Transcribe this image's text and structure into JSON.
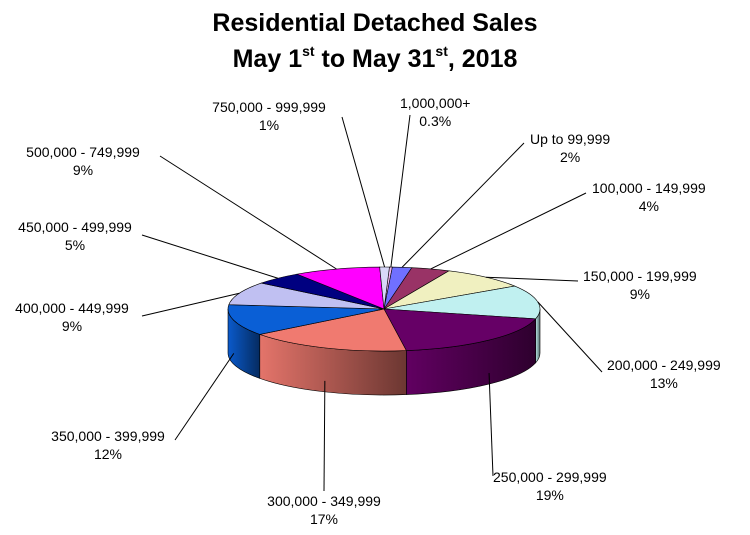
{
  "chart_data": {
    "type": "pie",
    "title": {
      "line1": "Residential Detached Sales",
      "line2_a": "May 1",
      "line2_sup1": "st",
      "line2_b": " to May 31",
      "line2_sup2": "st",
      "line2_c": ", 2018"
    },
    "slices": [
      {
        "label": "1,000,000+",
        "value_text": "0.3%",
        "value": 0.3,
        "color": "#f2b8f2"
      },
      {
        "label": "Up to 99,999",
        "value_text": "2%",
        "value": 2,
        "color": "#7070ff"
      },
      {
        "label": "100,000 - 149,999",
        "value_text": "4%",
        "value": 4,
        "color": "#993366"
      },
      {
        "label": "150,000 - 199,999",
        "value_text": "9%",
        "value": 9,
        "color": "#f0f0c0"
      },
      {
        "label": "200,000 - 249,999",
        "value_text": "13%",
        "value": 13,
        "color": "#c0f0f0"
      },
      {
        "label": "250,000 - 299,999",
        "value_text": "19%",
        "value": 19,
        "color": "#660066"
      },
      {
        "label": "300,000 - 349,999",
        "value_text": "17%",
        "value": 17,
        "color": "#f07a70"
      },
      {
        "label": "350,000 - 399,999",
        "value_text": "12%",
        "value": 12,
        "color": "#0a5fd6"
      },
      {
        "label": "400,000 - 449,999",
        "value_text": "9%",
        "value": 9,
        "color": "#c0c0f2"
      },
      {
        "label": "450,000 - 499,999",
        "value_text": "5%",
        "value": 5,
        "color": "#000080"
      },
      {
        "label": "500,000 - 749,999",
        "value_text": "9%",
        "value": 9,
        "color": "#ff00ff"
      },
      {
        "label": "750,000 - 999,999",
        "value_text": "1%",
        "value": 1,
        "color": "#d8d8f8"
      }
    ]
  }
}
